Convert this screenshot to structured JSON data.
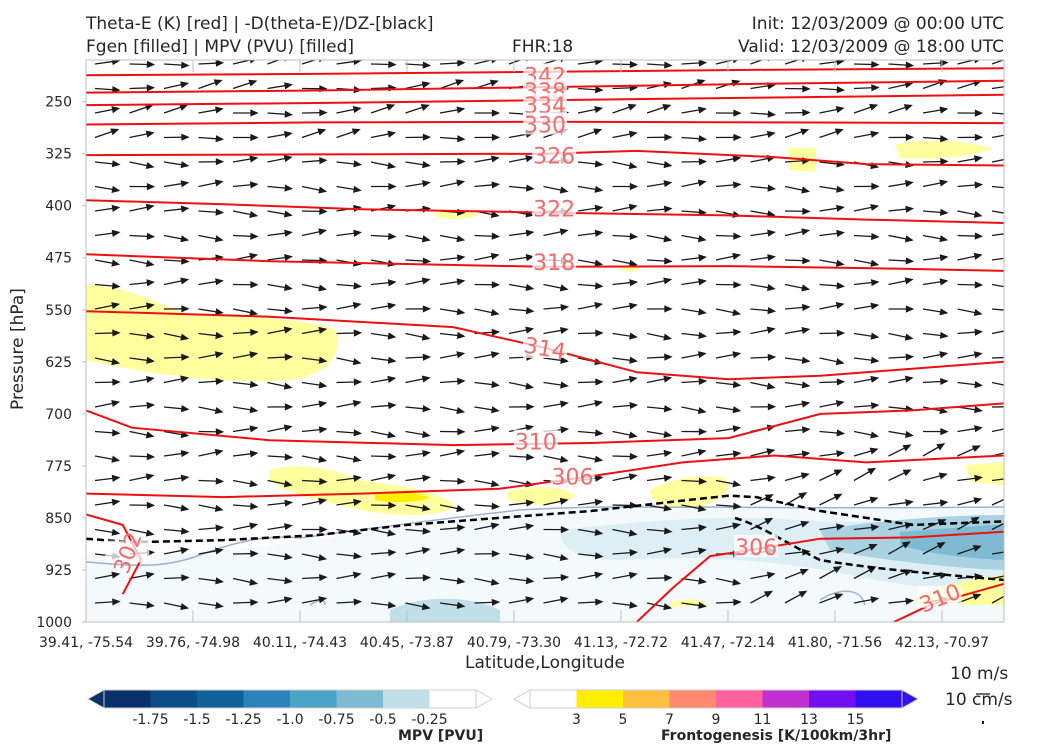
{
  "header": {
    "left_line1": "Theta-E (K) [red] | -D(theta-E)/DZ-[black]",
    "left_line2": "Fgen [filled] | MPV (PVU) [filled]",
    "center": "FHR:18",
    "right_line1": "Init: 12/03/2009 @ 00:00 UTC",
    "right_line2": "Valid: 12/03/2009 @ 18:00 UTC"
  },
  "chart_data": {
    "type": "cross-section contour",
    "ylabel": "Pressure [hPa]",
    "xlabel": "Latitude,Longitude",
    "y_ticks": [
      250,
      325,
      400,
      475,
      550,
      625,
      700,
      775,
      850,
      925,
      1000
    ],
    "ylim": [
      1000,
      190
    ],
    "x_ticks": [
      "39.41, -75.54",
      "39.76, -74.98",
      "40.11, -74.43",
      "40.45, -73.87",
      "40.79, -73.30",
      "41.13, -72.72",
      "41.47, -72.14",
      "41.80, -71.56",
      "42.13, -70.97"
    ],
    "theta_e_contours": [
      {
        "label": "342",
        "x": [
          0,
          0.25,
          0.5,
          0.75,
          1.0
        ],
        "y": [
          212,
          210,
          207,
          204,
          202
        ]
      },
      {
        "label": "338",
        "x": [
          0,
          0.25,
          0.5,
          0.75,
          1.0
        ],
        "y": [
          237,
          234,
          229,
          224,
          220
        ]
      },
      {
        "label": "334",
        "x": [
          0,
          0.25,
          0.5,
          0.75,
          1.0
        ],
        "y": [
          255,
          252,
          248,
          244,
          240
        ]
      },
      {
        "label": "330",
        "x": [
          0,
          0.25,
          0.5,
          0.75,
          1.0
        ],
        "y": [
          283,
          280,
          279,
          280,
          281
        ]
      },
      {
        "label": "326",
        "x": [
          0,
          0.25,
          0.5,
          0.6,
          0.75,
          0.85,
          1.0
        ],
        "y": [
          327,
          326,
          325,
          321,
          330,
          340,
          342
        ]
      },
      {
        "label": "322",
        "x": [
          0,
          0.15,
          0.3,
          0.5,
          0.7,
          0.85,
          1.0
        ],
        "y": [
          392,
          398,
          405,
          410,
          414,
          420,
          425
        ]
      },
      {
        "label": "318",
        "x": [
          0,
          0.2,
          0.5,
          0.7,
          0.85,
          1.0
        ],
        "y": [
          470,
          480,
          488,
          487,
          490,
          494
        ]
      },
      {
        "label": "314",
        "x": [
          0,
          0.2,
          0.4,
          0.5,
          0.6,
          0.7,
          0.8,
          1.0
        ],
        "y": [
          552,
          560,
          575,
          605,
          640,
          650,
          645,
          625
        ]
      },
      {
        "label": "310",
        "x": [
          0,
          0.05,
          0.2,
          0.4,
          0.55,
          0.7,
          0.8,
          0.9,
          1.0
        ],
        "y": [
          695,
          720,
          738,
          745,
          742,
          735,
          700,
          695,
          685
        ]
      },
      {
        "label": "306",
        "x": [
          0,
          0.15,
          0.3,
          0.45,
          0.55,
          0.65,
          0.75,
          0.85,
          1.0
        ],
        "y": [
          815,
          820,
          815,
          808,
          790,
          770,
          760,
          770,
          760
        ]
      },
      {
        "label": "306",
        "x": [
          0.6,
          0.64,
          0.68,
          0.73,
          0.8,
          0.9,
          1.0
        ],
        "y": [
          1000,
          950,
          905,
          895,
          880,
          878,
          870
        ]
      },
      {
        "label": "302",
        "x": [
          0,
          0.04,
          0.06,
          0.04
        ],
        "y": [
          845,
          860,
          910,
          960
        ]
      },
      {
        "label": "310",
        "x": [
          0.88,
          0.92,
          0.96,
          1.0
        ],
        "y": [
          1000,
          975,
          960,
          945
        ]
      }
    ],
    "stability_contour_black_dashed": {
      "x": [
        0,
        0.05,
        0.15,
        0.25,
        0.35,
        0.45,
        0.55,
        0.65,
        0.7,
        0.73,
        0.8,
        0.85,
        0.9,
        1.0
      ],
      "y": [
        880,
        885,
        882,
        875,
        860,
        850,
        840,
        825,
        818,
        820,
        840,
        850,
        860,
        855
      ]
    },
    "mpv_colorbar": {
      "title": "MPV [PVU]",
      "labels": [
        "-1.75",
        "-1.5",
        "-1.25",
        "-1.0",
        "-0.75",
        "-0.5",
        "-0.25"
      ],
      "colors": [
        "#08306b",
        "#0b4d87",
        "#10609a",
        "#2b83ba",
        "#4ba3c6",
        "#7ebbd3",
        "#c0dfe8",
        "#ffffff"
      ]
    },
    "fgen_colorbar": {
      "title": "Frontogenesis [K/100km/3hr]",
      "labels": [
        "3",
        "5",
        "7",
        "9",
        "11",
        "13",
        "15"
      ],
      "colors": [
        "#ffffff",
        "#ffee00",
        "#ffc040",
        "#ff8a70",
        "#ff60a0",
        "#c030d0",
        "#7010f0",
        "#3010f0"
      ]
    },
    "wind_scale": {
      "line1": "10 m/s",
      "line2": "10 cm/s"
    }
  }
}
